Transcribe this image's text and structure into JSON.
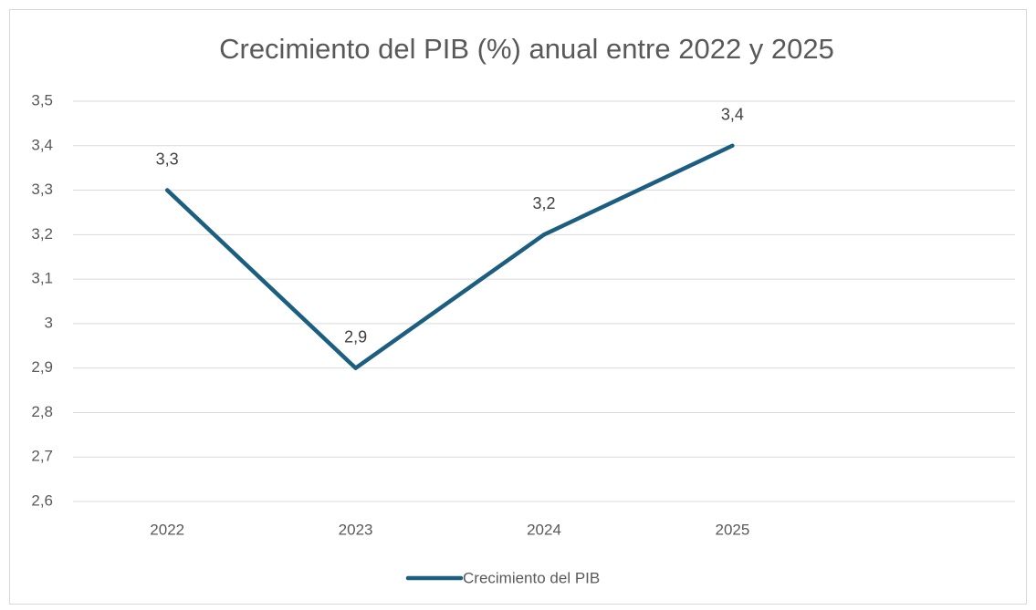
{
  "chart_data": {
    "type": "line",
    "title": "Crecimiento del PIB (%) anual entre 2022 y 2025",
    "categories": [
      "2022",
      "2023",
      "2024",
      "2025",
      null
    ],
    "series": [
      {
        "name": "Crecimiento del PIB",
        "color": "#1b5e80",
        "values": [
          3.3,
          2.9,
          3.2,
          3.4,
          null
        ],
        "value_labels": [
          "3,3",
          "2,9",
          "3,2",
          "3,4",
          null
        ]
      }
    ],
    "ylim": [
      2.6,
      3.5
    ],
    "yticks": [
      {
        "value": 2.6,
        "label": "2,6"
      },
      {
        "value": 2.7,
        "label": "2,7"
      },
      {
        "value": 2.8,
        "label": "2,8"
      },
      {
        "value": 2.9,
        "label": "2,9"
      },
      3,
      {
        "value": 3.1,
        "label": "3,1"
      },
      {
        "value": 3.2,
        "label": "3,2"
      },
      {
        "value": 3.3,
        "label": "3,3"
      },
      {
        "value": 3.4,
        "label": "3,4"
      },
      {
        "value": 3.5,
        "label": "3,5"
      }
    ],
    "grid": true,
    "legend": "bottom"
  }
}
